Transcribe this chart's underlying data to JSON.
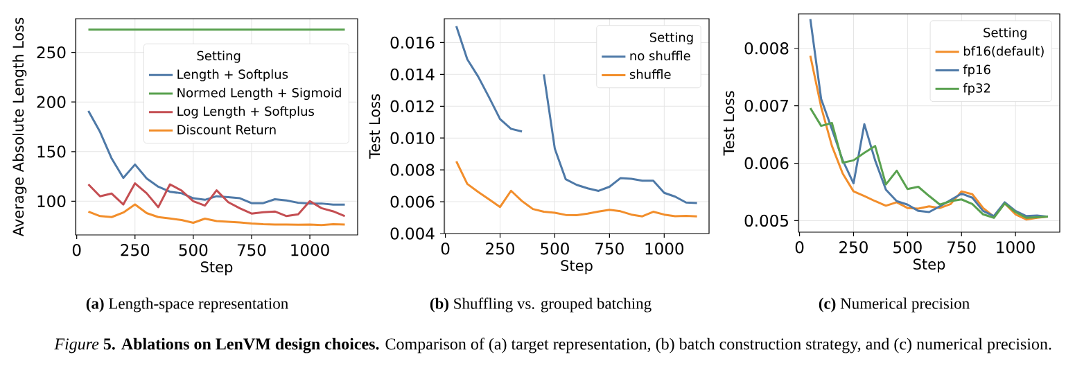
{
  "chart_data": [
    {
      "type": "line",
      "xlabel": "Step",
      "ylabel": "Average Absolute Length Loss",
      "legend_title": "Setting",
      "legend": "top right",
      "grid": true,
      "marker": "none",
      "line_style": "solid",
      "x": [
        50,
        100,
        150,
        200,
        250,
        300,
        350,
        400,
        450,
        500,
        550,
        600,
        650,
        700,
        750,
        800,
        850,
        900,
        950,
        1000,
        1050,
        1100,
        1150
      ],
      "xlim": [
        -5,
        1205
      ],
      "xticks": [
        0,
        250,
        500,
        750,
        1000
      ],
      "ylim": [
        66,
        284
      ],
      "yticks": [
        100,
        150,
        200,
        250
      ],
      "series": [
        {
          "name": "Length + Softplus",
          "color": "#4e79a7",
          "values": [
            191,
            169.9,
            143,
            123.5,
            137,
            123,
            114.6,
            109.5,
            108,
            103,
            101.4,
            105,
            104,
            103,
            98,
            98,
            102,
            100.7,
            98.4,
            97.7,
            97.7,
            96.5,
            96.5
          ]
        },
        {
          "name": "Normed Length + Sigmoid",
          "color": "#59a14f",
          "values": [
            273,
            273,
            273,
            273,
            273,
            273,
            273,
            273,
            273,
            273,
            273,
            273,
            273,
            273,
            273,
            273,
            273,
            273,
            273,
            273,
            273,
            273,
            273
          ]
        },
        {
          "name": "Log Length + Softplus",
          "color": "#c44e52",
          "values": [
            117,
            105,
            107.7,
            96.7,
            118,
            108,
            94,
            117,
            110.7,
            100,
            95.6,
            111,
            99,
            92.8,
            87.5,
            88.9,
            89.6,
            85,
            86.8,
            100,
            93,
            89.8,
            85
          ]
        },
        {
          "name": "Discount Return",
          "color": "#f28e2b",
          "values": [
            89.5,
            85,
            84,
            88.6,
            96.7,
            88,
            84,
            82.6,
            81,
            78.2,
            82.4,
            80,
            79.3,
            78.6,
            77.5,
            76.8,
            76.5,
            76.5,
            76.3,
            76.5,
            75.9,
            76.8,
            76.5
          ]
        }
      ],
      "annotations": [
        "**(a)** Length-space representation",
        "*Figure* **5. Ablations on LenVM design choices.** Comparison of (a) target representation, (b) batch construction strategy, and (c) numerical precision."
      ]
    },
    {
      "type": "line",
      "xlabel": "Step",
      "ylabel": "Test Loss",
      "legend_title": "Setting",
      "legend": "top right",
      "grid": true,
      "marker": "none",
      "line_style": "solid",
      "x": [
        50,
        100,
        150,
        200,
        250,
        300,
        350,
        400,
        450,
        500,
        550,
        600,
        650,
        700,
        750,
        800,
        850,
        900,
        950,
        1000,
        1050,
        1100,
        1150
      ],
      "xlim": [
        -5,
        1205
      ],
      "xticks": [
        0,
        250,
        500,
        750,
        1000
      ],
      "ylim": [
        0.004,
        0.0175
      ],
      "yticks": [
        0.004,
        0.006,
        0.008,
        {
          "value": 0.01,
          "label": "0.010"
        },
        0.012,
        0.014,
        0.016
      ],
      "series": [
        {
          "name": "no shuffle",
          "color": "#4e79a7",
          "values": [
            0.01703,
            0.01495,
            0.01386,
            0.01255,
            0.01119,
            0.01058,
            0.01041,
            null,
            0.014,
            0.00934,
            0.00741,
            0.00706,
            0.00684,
            0.00668,
            0.00694,
            0.00748,
            0.00744,
            0.00732,
            0.00732,
            0.00656,
            0.00632,
            0.00595,
            0.00592
          ]
        },
        {
          "name": "shuffle",
          "color": "#f28e2b",
          "values": [
            0.00854,
            0.00712,
            0.00661,
            0.00614,
            0.00567,
            0.00669,
            0.00604,
            0.00554,
            0.00537,
            0.00531,
            0.00517,
            0.00515,
            0.00525,
            0.00538,
            0.00549,
            0.0054,
            0.00519,
            0.00508,
            0.00537,
            0.00519,
            0.00509,
            0.00511,
            0.00508
          ]
        }
      ],
      "annotations": [
        "**(b)** Shuffling vs. grouped batching"
      ]
    },
    {
      "type": "line",
      "xlabel": "Step",
      "ylabel": "Test Loss",
      "legend_title": "Setting",
      "legend": "top right",
      "grid": true,
      "marker": "none",
      "line_style": "solid",
      "x": [
        50,
        100,
        150,
        200,
        250,
        300,
        350,
        400,
        450,
        500,
        550,
        600,
        650,
        700,
        750,
        800,
        850,
        900,
        950,
        1000,
        1050,
        1100,
        1150
      ],
      "xlim": [
        -5,
        1205
      ],
      "xticks": [
        0,
        250,
        500,
        750,
        1000
      ],
      "ylim": [
        0.0048,
        0.0086
      ],
      "yticks": [
        0.005,
        0.006,
        0.007,
        0.008
      ],
      "series": [
        {
          "name": "bf16(default)",
          "color": "#f28e2b",
          "values": [
            0.00787,
            0.00698,
            0.0063,
            0.00582,
            0.00551,
            0.00543,
            0.00534,
            0.00526,
            0.00532,
            0.00522,
            0.00521,
            0.00525,
            0.00522,
            0.00529,
            0.00551,
            0.00546,
            0.00522,
            0.00507,
            0.0053,
            0.00511,
            0.00502,
            0.00505,
            0.00507
          ]
        },
        {
          "name": "fp16",
          "color": "#4e79a7",
          "values": [
            0.00851,
            0.00712,
            0.00659,
            0.00605,
            0.00565,
            0.00668,
            0.00605,
            0.00554,
            0.00534,
            0.00528,
            0.00517,
            0.00515,
            0.00525,
            0.00536,
            0.00547,
            0.0054,
            0.00517,
            0.00508,
            0.00532,
            0.00517,
            0.00508,
            0.00509,
            0.00507
          ]
        },
        {
          "name": "fp32",
          "color": "#59a14f",
          "values": [
            0.00696,
            0.00665,
            0.0067,
            0.00601,
            0.00605,
            0.00618,
            0.0063,
            0.00563,
            0.00587,
            0.00555,
            0.00559,
            0.00543,
            0.00528,
            0.00534,
            0.00537,
            0.00529,
            0.00511,
            0.00505,
            0.0053,
            0.00515,
            0.00505,
            0.00506,
            0.00507
          ]
        }
      ],
      "annotations": [
        "**(c)** Numerical precision"
      ]
    }
  ]
}
